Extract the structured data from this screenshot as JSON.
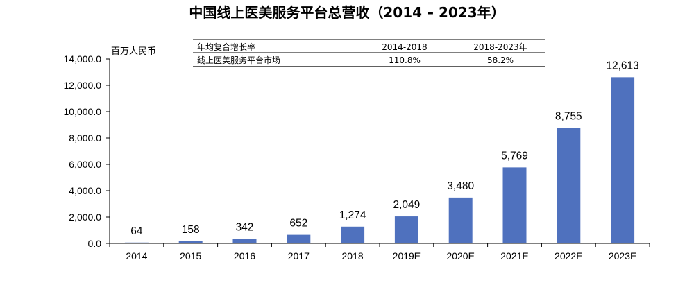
{
  "chart_data": {
    "type": "bar",
    "title": "中国线上医美服务平台总营收（2014 – 2023年）",
    "ylabel": "百万人民币",
    "xlabel": "",
    "categories": [
      "2014",
      "2015",
      "2016",
      "2017",
      "2018",
      "2019E",
      "2020E",
      "2021E",
      "2022E",
      "2023E"
    ],
    "values": [
      64,
      158,
      342,
      652,
      1274,
      2049,
      3480,
      5769,
      8755,
      12613
    ],
    "data_labels": [
      "64",
      "158",
      "342",
      "652",
      "1,274",
      "2,049",
      "3,480",
      "5,769",
      "8,755",
      "12,613"
    ],
    "ylim": [
      0,
      14000
    ],
    "yticks": [
      0,
      2000,
      4000,
      6000,
      8000,
      10000,
      12000,
      14000
    ],
    "ytick_labels": [
      "0.0",
      "2,000.0",
      "4,000.0",
      "6,000.0",
      "8,000.0",
      "10,000.0",
      "12,000.0",
      "14,000.0"
    ],
    "grid": false,
    "legend": "none",
    "bar_color": "#4f71be",
    "inset_table": {
      "header": [
        "年均复合增长率",
        "2014-2018",
        "2018-2023年"
      ],
      "rows": [
        [
          "线上医美服务平台市场",
          "110.8%",
          "58.2%"
        ]
      ]
    }
  }
}
